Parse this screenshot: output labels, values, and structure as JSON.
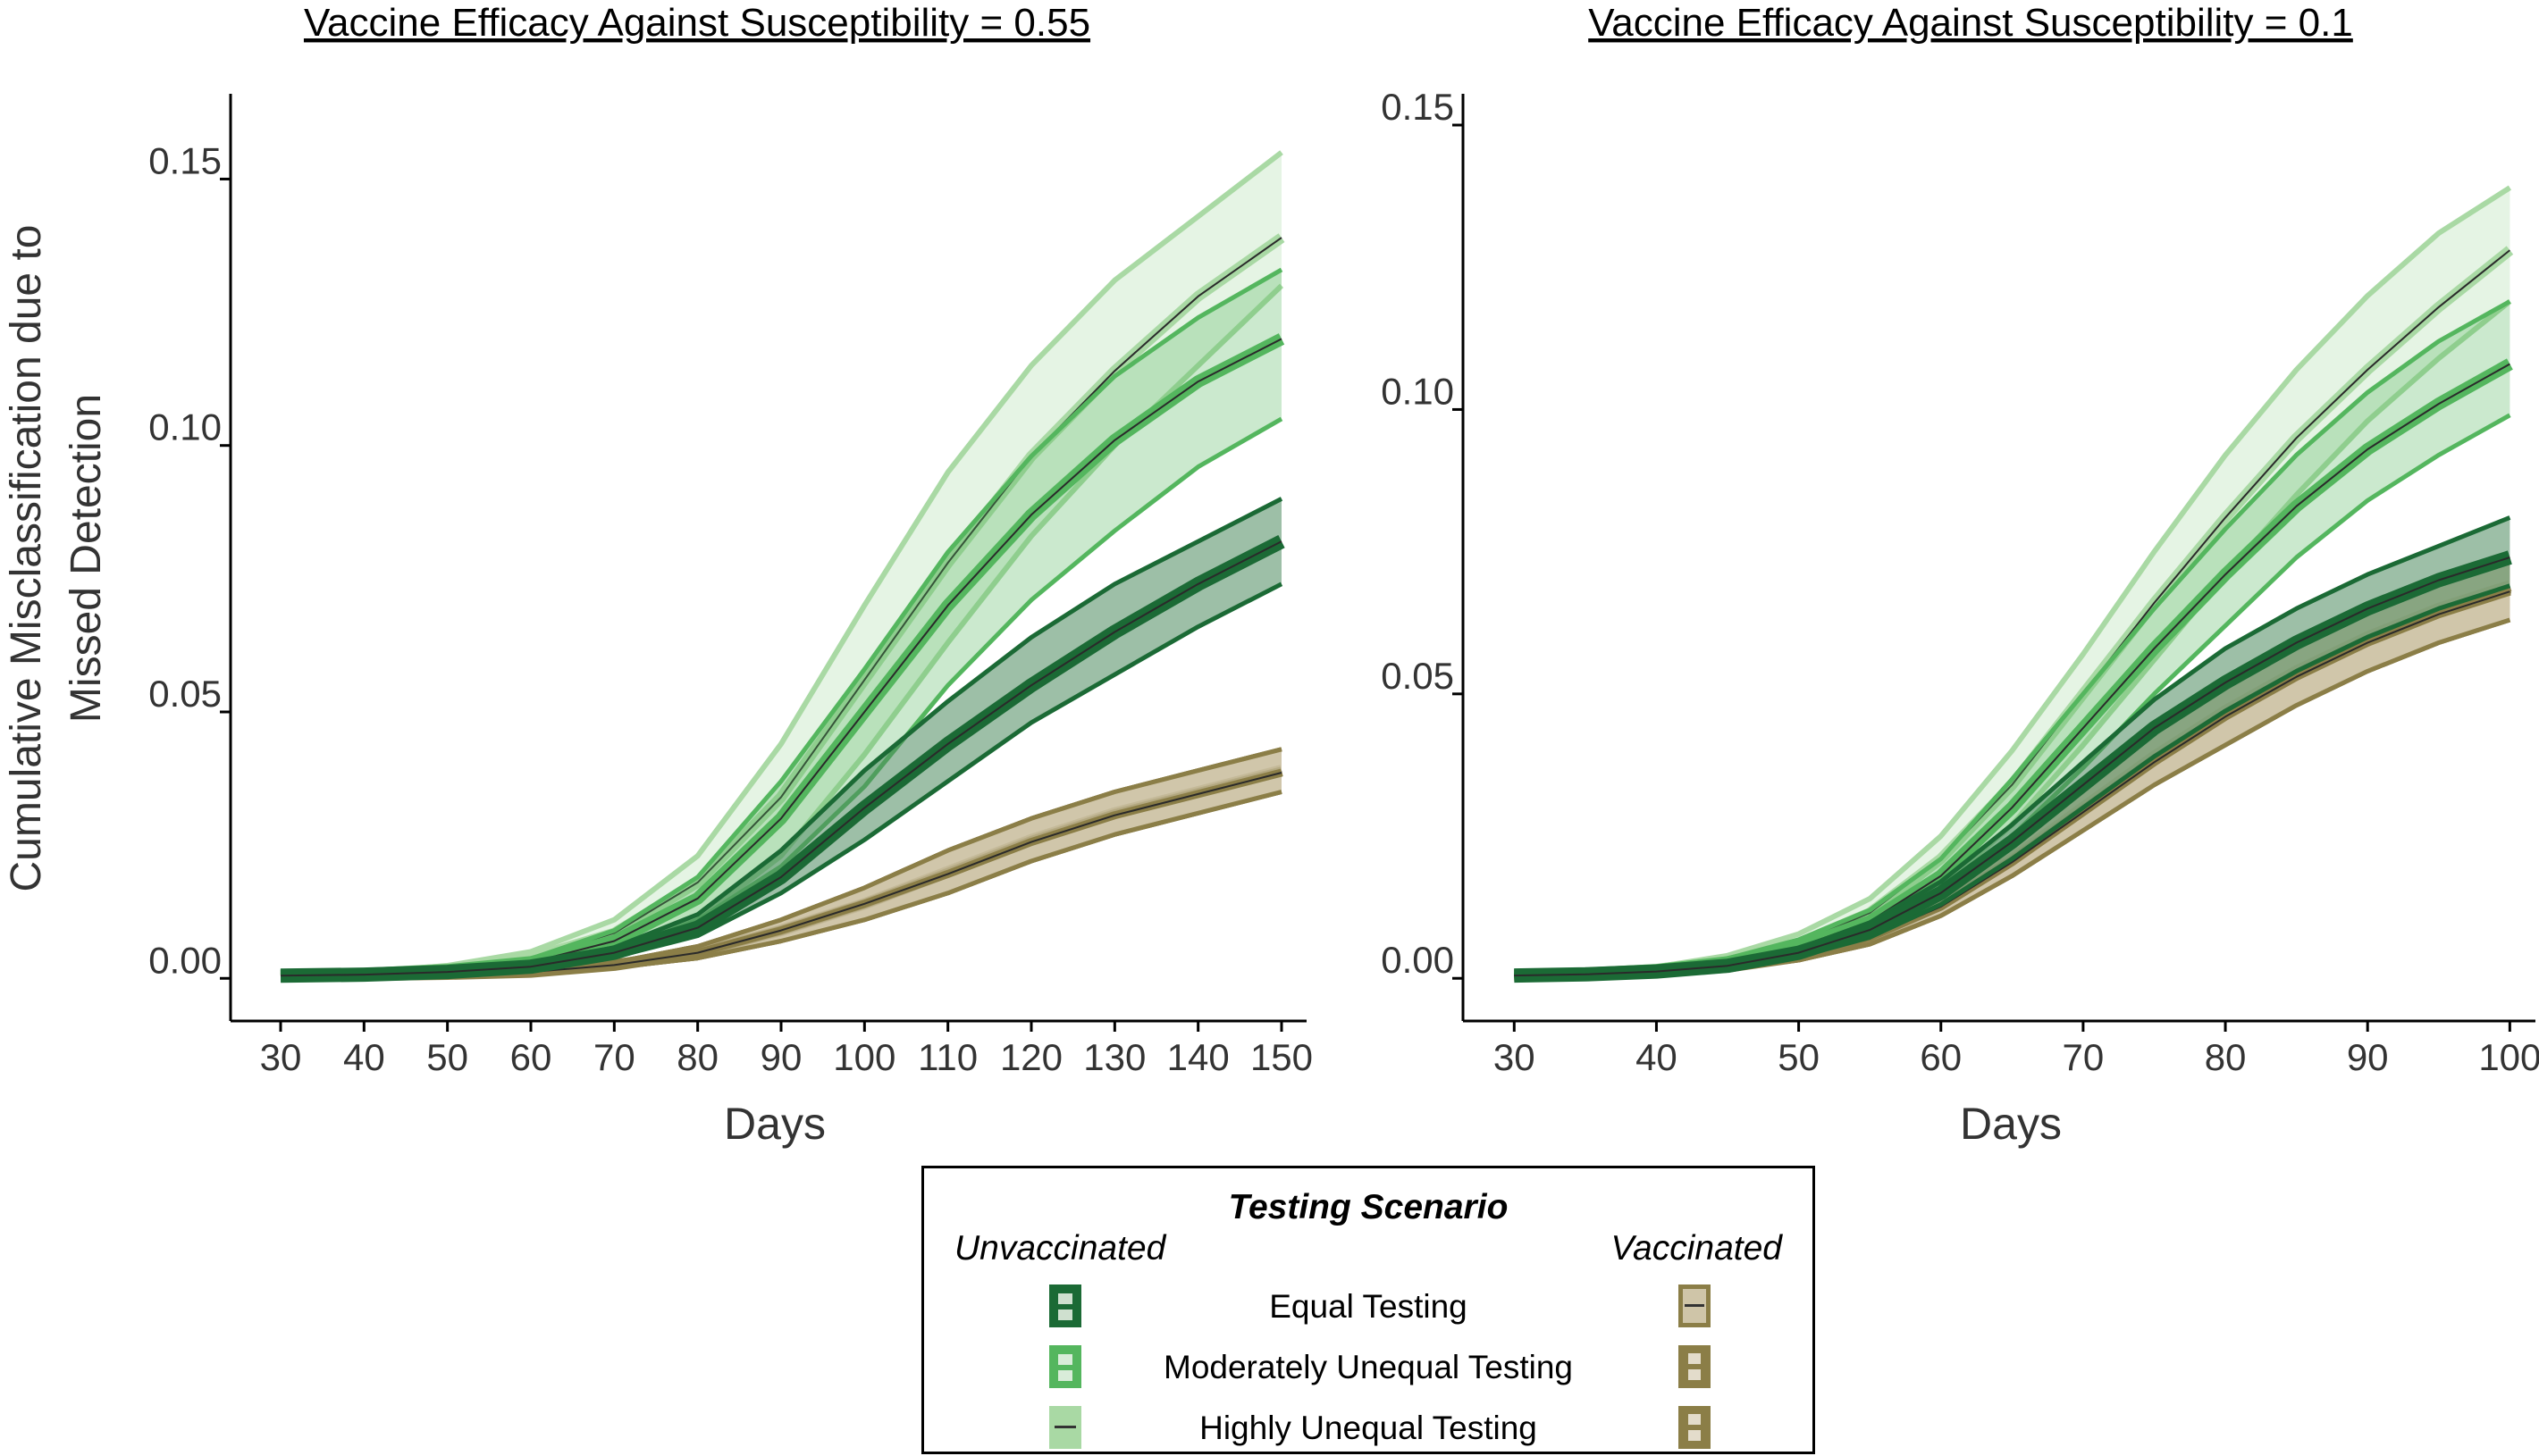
{
  "chart_data": [
    {
      "type": "line",
      "title": "Vaccine Efficacy Against Susceptibility = 0.55",
      "xlabel": "Days",
      "ylabel": "Cumulative Misclassification due to Missed Detection",
      "xlim": [
        24,
        153
      ],
      "ylim": [
        -0.008,
        0.166
      ],
      "xticks": [
        30,
        40,
        50,
        60,
        70,
        80,
        90,
        100,
        110,
        120,
        130,
        140,
        150
      ],
      "yticks": [
        "0.00",
        "0.05",
        "0.10",
        "0.15"
      ],
      "x": [
        30,
        40,
        50,
        60,
        70,
        80,
        90,
        100,
        110,
        120,
        130,
        140,
        150
      ],
      "series": [
        {
          "name": "Equal Testing",
          "group": "Unvaccinated",
          "values": [
            0.0005,
            0.0007,
            0.0012,
            0.0022,
            0.0048,
            0.0095,
            0.019,
            0.032,
            0.044,
            0.055,
            0.065,
            0.074,
            0.082
          ],
          "lower": [
            0.0005,
            0.0006,
            0.001,
            0.0018,
            0.004,
            0.008,
            0.016,
            0.026,
            0.037,
            0.048,
            0.057,
            0.066,
            0.074
          ],
          "upper": [
            0.0006,
            0.0008,
            0.0014,
            0.0026,
            0.0058,
            0.012,
            0.024,
            0.039,
            0.052,
            0.064,
            0.074,
            0.082,
            0.09
          ]
        },
        {
          "name": "Moderately Unequal Testing",
          "group": "Unvaccinated",
          "values": [
            0.0005,
            0.0008,
            0.0015,
            0.003,
            0.007,
            0.015,
            0.03,
            0.05,
            0.07,
            0.087,
            0.101,
            0.112,
            0.12
          ],
          "lower": [
            0.0005,
            0.0007,
            0.0012,
            0.0023,
            0.005,
            0.011,
            0.021,
            0.036,
            0.055,
            0.071,
            0.084,
            0.096,
            0.105
          ],
          "upper": [
            0.0006,
            0.0009,
            0.0018,
            0.0037,
            0.009,
            0.019,
            0.037,
            0.058,
            0.08,
            0.098,
            0.113,
            0.124,
            0.133
          ]
        },
        {
          "name": "Highly Unequal Testing",
          "group": "Unvaccinated",
          "values": [
            0.0005,
            0.0009,
            0.0018,
            0.0038,
            0.0085,
            0.018,
            0.034,
            0.056,
            0.078,
            0.098,
            0.114,
            0.128,
            0.139
          ],
          "lower": [
            0.0005,
            0.0007,
            0.0013,
            0.0025,
            0.0055,
            0.011,
            0.023,
            0.042,
            0.063,
            0.083,
            0.1,
            0.115,
            0.13
          ],
          "upper": [
            0.0006,
            0.0011,
            0.0024,
            0.005,
            0.011,
            0.023,
            0.044,
            0.07,
            0.095,
            0.115,
            0.131,
            0.143,
            0.155
          ]
        },
        {
          "name": "Equal Testing",
          "group": "Vaccinated",
          "values": [
            0.0005,
            0.0006,
            0.0008,
            0.0012,
            0.0025,
            0.0048,
            0.009,
            0.014,
            0.02,
            0.026,
            0.031,
            0.035,
            0.039
          ],
          "lower": [
            0.0004,
            0.0005,
            0.0007,
            0.001,
            0.002,
            0.0038,
            0.007,
            0.011,
            0.016,
            0.022,
            0.027,
            0.031,
            0.035
          ],
          "upper": [
            0.0006,
            0.0007,
            0.0009,
            0.0014,
            0.003,
            0.006,
            0.011,
            0.017,
            0.024,
            0.03,
            0.035,
            0.039,
            0.043
          ]
        },
        {
          "name": "Moderately Unequal Testing",
          "group": "Vaccinated",
          "values": [
            0.0005,
            0.0006,
            0.0008,
            0.0012,
            0.0025,
            0.0048,
            0.009,
            0.014,
            0.0198,
            0.0258,
            0.0308,
            0.0348,
            0.0388
          ],
          "lower": [
            0.0004,
            0.0005,
            0.0007,
            0.001,
            0.002,
            0.0038,
            0.007,
            0.011,
            0.016,
            0.022,
            0.027,
            0.031,
            0.035
          ],
          "upper": [
            0.0006,
            0.0007,
            0.0009,
            0.0014,
            0.003,
            0.006,
            0.011,
            0.017,
            0.024,
            0.03,
            0.035,
            0.039,
            0.043
          ]
        },
        {
          "name": "Highly Unequal Testing",
          "group": "Vaccinated",
          "values": [
            0.0005,
            0.0006,
            0.0008,
            0.0012,
            0.0025,
            0.0048,
            0.009,
            0.014,
            0.0196,
            0.0256,
            0.0306,
            0.0346,
            0.0386
          ],
          "lower": [
            0.0004,
            0.0005,
            0.0007,
            0.001,
            0.002,
            0.0038,
            0.007,
            0.011,
            0.016,
            0.022,
            0.027,
            0.031,
            0.035
          ],
          "upper": [
            0.0006,
            0.0007,
            0.0009,
            0.0014,
            0.003,
            0.006,
            0.011,
            0.017,
            0.024,
            0.03,
            0.035,
            0.039,
            0.043
          ]
        }
      ]
    },
    {
      "type": "line",
      "title": "Vaccine Efficacy Against Susceptibility = 0.1",
      "xlabel": "Days",
      "ylabel": "",
      "xlim": [
        26.4,
        101.8
      ],
      "ylim": [
        -0.0075,
        0.1555
      ],
      "xticks": [
        30,
        40,
        50,
        60,
        70,
        80,
        90,
        100
      ],
      "yticks": [
        "0.00",
        "0.05",
        "0.10",
        "0.15"
      ],
      "x": [
        30,
        35,
        40,
        45,
        50,
        55,
        60,
        65,
        70,
        75,
        80,
        85,
        90,
        95,
        100
      ],
      "series": [
        {
          "name": "Equal Testing",
          "group": "Unvaccinated",
          "values": [
            0.0005,
            0.0007,
            0.0012,
            0.0022,
            0.0045,
            0.0085,
            0.015,
            0.024,
            0.034,
            0.044,
            0.052,
            0.059,
            0.065,
            0.07,
            0.074
          ],
          "lower": [
            0.0004,
            0.0006,
            0.001,
            0.0018,
            0.0038,
            0.0072,
            0.013,
            0.021,
            0.03,
            0.039,
            0.047,
            0.054,
            0.06,
            0.065,
            0.069
          ],
          "upper": [
            0.0006,
            0.0008,
            0.0014,
            0.0026,
            0.0052,
            0.0098,
            0.017,
            0.027,
            0.038,
            0.049,
            0.058,
            0.065,
            0.071,
            0.076,
            0.081
          ]
        },
        {
          "name": "Moderately Unequal Testing",
          "group": "Unvaccinated",
          "values": [
            0.0005,
            0.0008,
            0.0014,
            0.0028,
            0.0055,
            0.01,
            0.018,
            0.03,
            0.044,
            0.058,
            0.071,
            0.083,
            0.093,
            0.101,
            0.108
          ],
          "lower": [
            0.0004,
            0.0006,
            0.0011,
            0.0022,
            0.0045,
            0.0085,
            0.015,
            0.025,
            0.037,
            0.05,
            0.062,
            0.074,
            0.084,
            0.092,
            0.099
          ],
          "upper": [
            0.0006,
            0.001,
            0.0018,
            0.0035,
            0.0068,
            0.012,
            0.021,
            0.035,
            0.05,
            0.065,
            0.079,
            0.092,
            0.103,
            0.112,
            0.119
          ]
        },
        {
          "name": "Highly Unequal Testing",
          "group": "Unvaccinated",
          "values": [
            0.0005,
            0.0009,
            0.0016,
            0.0032,
            0.0062,
            0.0115,
            0.021,
            0.034,
            0.05,
            0.066,
            0.081,
            0.095,
            0.107,
            0.118,
            0.128
          ],
          "lower": [
            0.0004,
            0.0007,
            0.0012,
            0.0024,
            0.0048,
            0.009,
            0.016,
            0.027,
            0.041,
            0.056,
            0.071,
            0.085,
            0.098,
            0.109,
            0.119
          ],
          "upper": [
            0.0006,
            0.0011,
            0.002,
            0.004,
            0.0078,
            0.014,
            0.025,
            0.04,
            0.057,
            0.075,
            0.092,
            0.107,
            0.12,
            0.131,
            0.139
          ]
        },
        {
          "name": "Equal Testing",
          "group": "Vaccinated",
          "values": [
            0.0005,
            0.0007,
            0.0011,
            0.002,
            0.0038,
            0.0072,
            0.013,
            0.021,
            0.03,
            0.039,
            0.047,
            0.054,
            0.06,
            0.065,
            0.069
          ],
          "lower": [
            0.0004,
            0.0006,
            0.0009,
            0.0016,
            0.0032,
            0.006,
            0.011,
            0.018,
            0.026,
            0.034,
            0.041,
            0.048,
            0.054,
            0.059,
            0.063
          ],
          "upper": [
            0.0006,
            0.0008,
            0.0013,
            0.0024,
            0.0045,
            0.0085,
            0.015,
            0.024,
            0.034,
            0.044,
            0.052,
            0.059,
            0.065,
            0.07,
            0.074
          ]
        },
        {
          "name": "Moderately Unequal Testing",
          "group": "Vaccinated",
          "values": [
            0.0005,
            0.0007,
            0.0011,
            0.002,
            0.0038,
            0.0072,
            0.0128,
            0.0207,
            0.0296,
            0.0385,
            0.0465,
            0.0535,
            0.0595,
            0.0645,
            0.0685
          ],
          "lower": [
            0.0004,
            0.0006,
            0.0009,
            0.0016,
            0.0032,
            0.006,
            0.011,
            0.018,
            0.026,
            0.034,
            0.041,
            0.048,
            0.054,
            0.059,
            0.063
          ],
          "upper": [
            0.0006,
            0.0008,
            0.0013,
            0.0024,
            0.0045,
            0.0085,
            0.015,
            0.024,
            0.034,
            0.044,
            0.052,
            0.059,
            0.065,
            0.07,
            0.074
          ]
        },
        {
          "name": "Highly Unequal Testing",
          "group": "Vaccinated",
          "values": [
            0.0005,
            0.0007,
            0.0011,
            0.002,
            0.0038,
            0.0072,
            0.0126,
            0.0204,
            0.0292,
            0.038,
            0.046,
            0.053,
            0.059,
            0.064,
            0.068
          ],
          "lower": [
            0.0004,
            0.0006,
            0.0009,
            0.0016,
            0.0032,
            0.006,
            0.011,
            0.018,
            0.026,
            0.034,
            0.041,
            0.048,
            0.054,
            0.059,
            0.063
          ],
          "upper": [
            0.0006,
            0.0008,
            0.0013,
            0.0024,
            0.0045,
            0.0085,
            0.015,
            0.024,
            0.034,
            0.044,
            0.052,
            0.059,
            0.065,
            0.07,
            0.074
          ]
        }
      ]
    }
  ],
  "legend": {
    "title": "Testing Scenario",
    "unvaccinated_label": "Unvaccinated",
    "vaccinated_label": "Vaccinated",
    "entries": [
      "Equal Testing",
      "Moderately Unequal Testing",
      "Highly Unequal Testing"
    ]
  },
  "colors": {
    "equal_unvaccinated": "#1b6a35",
    "moderate_unvaccinated": "#54b65e",
    "high_unvaccinated": "#a9d9a4",
    "vaccinated": "#8b7e47",
    "vaccinated_band": "#cfc5a8",
    "axis": "#000000",
    "text": "#333333"
  }
}
